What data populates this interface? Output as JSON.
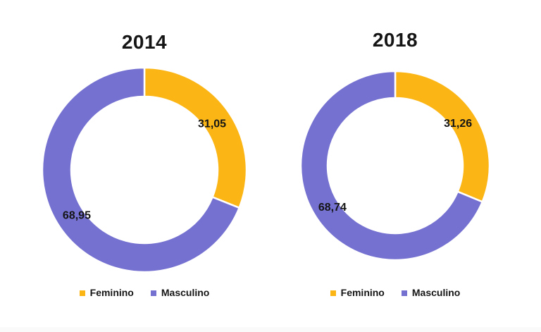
{
  "page": {
    "background": "#FFFFFF"
  },
  "chart_data": [
    {
      "type": "pie",
      "subtype": "donut",
      "title": "2014",
      "labels": [
        "Feminino",
        "Masculino"
      ],
      "values": [
        31.05,
        68.95
      ],
      "value_labels": [
        "31,05",
        "68,95"
      ],
      "colors": [
        "#FBB616",
        "#7571D1"
      ],
      "start_angle_deg": 0,
      "direction": "clockwise",
      "legend_position": "bottom",
      "label_color": "#151515"
    },
    {
      "type": "pie",
      "subtype": "donut",
      "title": "2018",
      "labels": [
        "Feminino",
        "Masculino"
      ],
      "values": [
        31.26,
        68.74
      ],
      "value_labels": [
        "31,26",
        "68,74"
      ],
      "colors": [
        "#FBB616",
        "#7571D1"
      ],
      "start_angle_deg": 0,
      "direction": "clockwise",
      "legend_position": "bottom",
      "label_color": "#151515"
    }
  ]
}
